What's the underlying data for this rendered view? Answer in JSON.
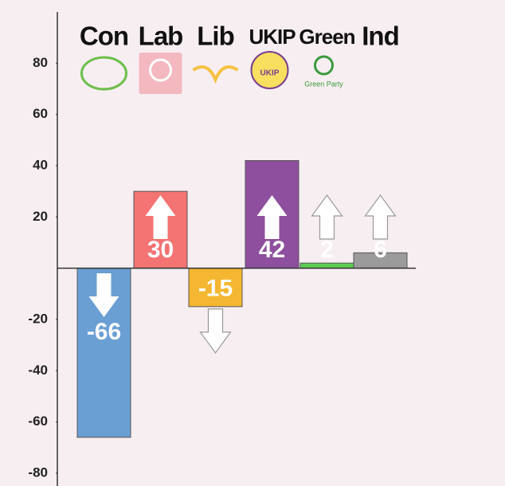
{
  "chart_data": {
    "type": "bar",
    "categories": [
      "Con",
      "Lab",
      "Lib",
      "UKIP",
      "Green",
      "Ind"
    ],
    "values": [
      -66,
      30,
      -15,
      42,
      2,
      6
    ],
    "colors": [
      "#6a9fd4",
      "#f47373",
      "#f5b731",
      "#8e4f9e",
      "#5dcc55",
      "#9b9b9b"
    ],
    "annotations": [
      "UKIP",
      "Green Party"
    ],
    "ylim": [
      -85,
      100
    ],
    "yticks": [
      80,
      60,
      40,
      20,
      -20,
      -40,
      -60,
      -80
    ],
    "grid": false
  }
}
